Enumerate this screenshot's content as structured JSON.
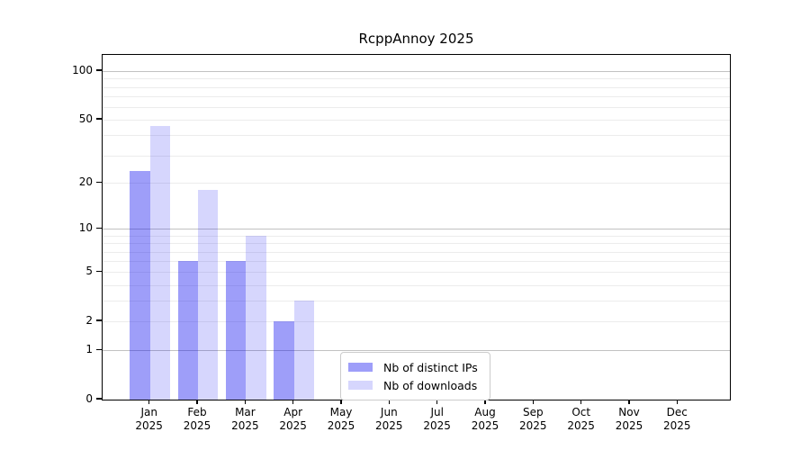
{
  "chart_data": {
    "type": "bar",
    "title": "RcppAnnoy 2025",
    "x_months": [
      "Jan",
      "Feb",
      "Mar",
      "Apr",
      "May",
      "Jun",
      "Jul",
      "Aug",
      "Sep",
      "Oct",
      "Nov",
      "Dec"
    ],
    "x_year": "2025",
    "series": [
      {
        "name": "Nb of distinct IPs",
        "color": "rgba(0, 0, 240, 0.38)",
        "values": [
          24,
          6,
          6,
          2,
          null,
          null,
          null,
          null,
          null,
          null,
          null,
          null
        ]
      },
      {
        "name": "Nb of downloads",
        "color": "rgba(0, 0, 240, 0.16)",
        "values": [
          46,
          18,
          9,
          3,
          null,
          null,
          null,
          null,
          null,
          null,
          null,
          null
        ]
      }
    ],
    "y_scale": "log1p",
    "y_max": 126,
    "y_ticks": [
      0,
      1,
      2,
      5,
      10,
      20,
      50,
      100
    ],
    "grid_major": [
      1,
      10,
      100
    ],
    "grid_minor": [
      2,
      3,
      4,
      5,
      6,
      7,
      8,
      9,
      20,
      30,
      40,
      50,
      60,
      70,
      80,
      90
    ],
    "legend_position": "lower center",
    "grid": "on"
  }
}
